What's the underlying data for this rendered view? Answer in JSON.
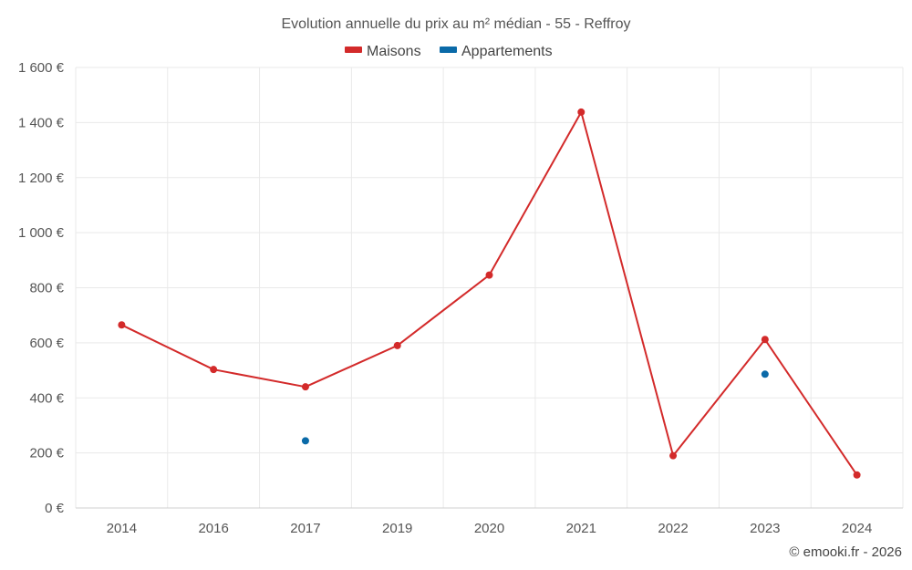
{
  "chart_data": {
    "type": "line",
    "title": "Evolution annuelle du prix au m² médian - 55 - Reffroy",
    "categories": [
      "2014",
      "2016",
      "2017",
      "2019",
      "2020",
      "2021",
      "2022",
      "2023",
      "2024"
    ],
    "series": [
      {
        "name": "Maisons",
        "color": "#d32a2a",
        "style": "line-markers",
        "values": [
          665,
          503,
          440,
          590,
          846,
          1438,
          190,
          612,
          120
        ]
      },
      {
        "name": "Appartements",
        "color": "#0a6aa8",
        "style": "markers",
        "values": [
          null,
          null,
          244,
          null,
          null,
          null,
          null,
          486,
          null
        ]
      }
    ],
    "ylim": [
      0,
      1600
    ],
    "yticks": [
      0,
      200,
      400,
      600,
      800,
      1000,
      1200,
      1400,
      1600
    ],
    "ytick_labels": [
      "0 €",
      "200 €",
      "400 €",
      "600 €",
      "800 €",
      "1 000 €",
      "1 200 €",
      "1 400 €",
      "1 600 €"
    ],
    "xlabel": "",
    "ylabel": "",
    "grid": true,
    "legend_position": "top-center"
  },
  "credit": "© emooki.fr - 2026"
}
